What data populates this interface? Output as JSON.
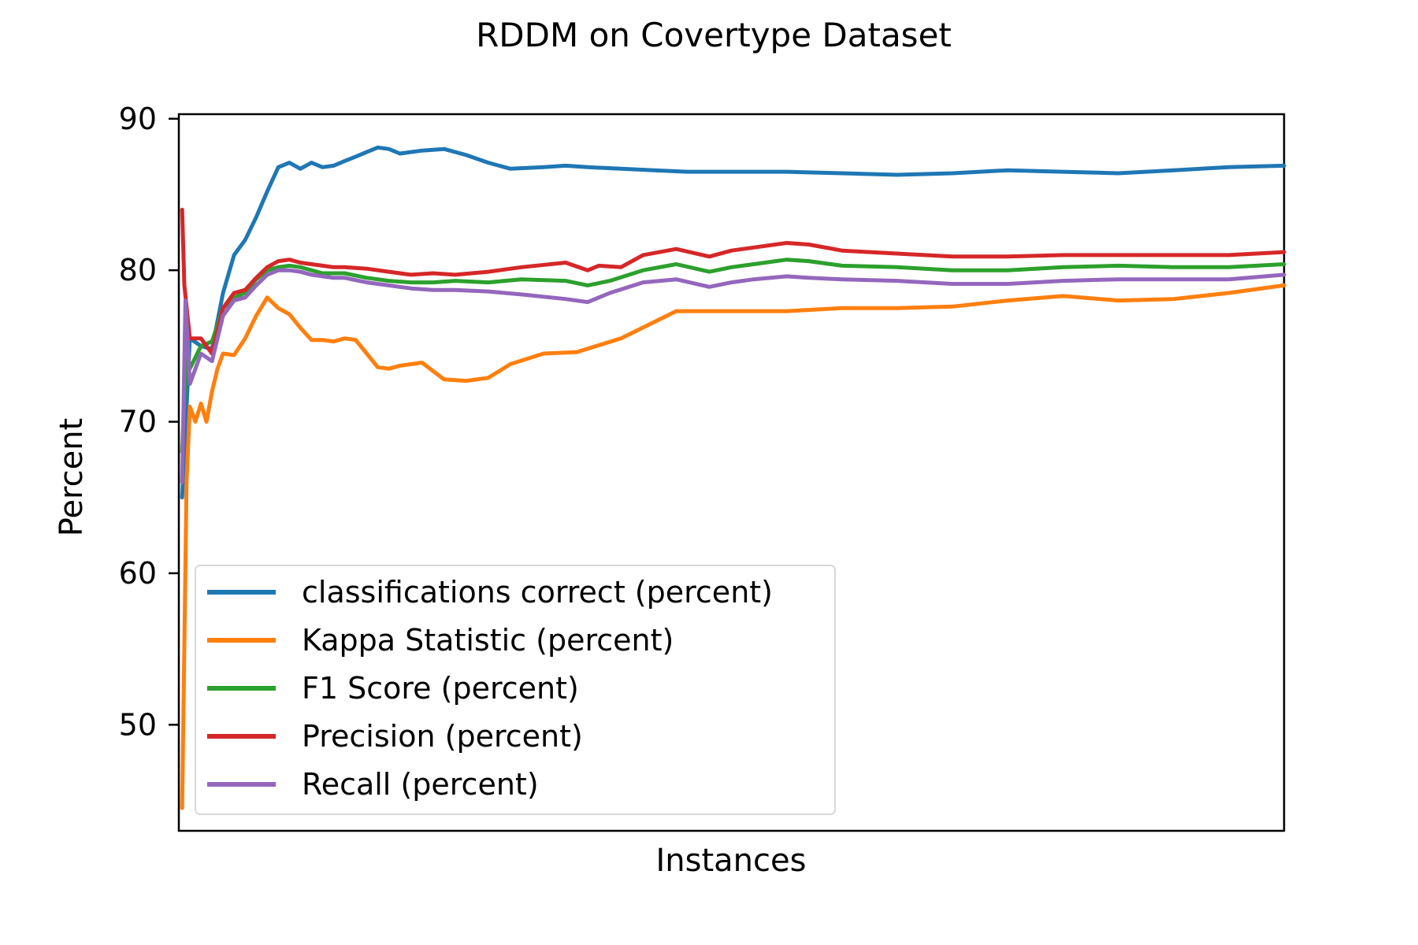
{
  "chart_data": {
    "type": "line",
    "title": "RDDM on Covertype Dataset",
    "xlabel": "Instances",
    "ylabel": "Percent",
    "xlim": [
      0,
      100
    ],
    "ylim": [
      43,
      90.3
    ],
    "yticks": [
      50,
      60,
      70,
      80,
      90
    ],
    "grid": false,
    "legend_position": "lower-left",
    "series": [
      {
        "name": "classifications correct (percent)",
        "color": "#1f77b4",
        "x": [
          0.3,
          1,
          2,
          3,
          4,
          5,
          6,
          7,
          8,
          9,
          10,
          11,
          12,
          13,
          14,
          15,
          16,
          17,
          18,
          19,
          20,
          22,
          24,
          26,
          28,
          30,
          33,
          35,
          37,
          40,
          43,
          46,
          50,
          55,
          60,
          65,
          70,
          75,
          80,
          85,
          90,
          95,
          100
        ],
        "y": [
          65,
          75.5,
          75,
          74.8,
          78.5,
          81,
          82,
          83.5,
          85.2,
          86.8,
          87.1,
          86.7,
          87.1,
          86.8,
          86.9,
          87.2,
          87.5,
          87.8,
          88.1,
          88,
          87.7,
          87.9,
          88,
          87.6,
          87.1,
          86.7,
          86.8,
          86.9,
          86.8,
          86.7,
          86.6,
          86.5,
          86.5,
          86.5,
          86.4,
          86.3,
          86.4,
          86.6,
          86.5,
          86.4,
          86.6,
          86.8,
          86.9
        ]
      },
      {
        "name": "Kappa Statistic (percent)",
        "color": "#ff7f0e",
        "x": [
          0.3,
          0.7,
          1,
          1.5,
          2,
          2.5,
          3,
          3.5,
          4,
          5,
          6,
          7,
          8,
          9,
          10,
          11,
          12,
          13,
          14,
          15,
          16,
          17,
          18,
          19,
          20,
          22,
          24,
          26,
          28,
          30,
          33,
          36,
          40,
          45,
          50,
          55,
          60,
          65,
          70,
          75,
          80,
          85,
          90,
          95,
          100
        ],
        "y": [
          44.5,
          66,
          71,
          70,
          71.2,
          70,
          72,
          73.5,
          74.5,
          74.4,
          75.5,
          77,
          78.2,
          77.5,
          77.1,
          76.2,
          75.4,
          75.4,
          75.3,
          75.5,
          75.4,
          74.5,
          73.6,
          73.5,
          73.7,
          73.9,
          72.8,
          72.7,
          72.9,
          73.8,
          74.5,
          74.6,
          75.5,
          77.3,
          77.3,
          77.3,
          77.5,
          77.5,
          77.6,
          78,
          78.3,
          78,
          78.1,
          78.5,
          79
        ]
      },
      {
        "name": "F1 Score (percent)",
        "color": "#2ca02c",
        "x": [
          0.3,
          0.7,
          1,
          2,
          3,
          4,
          5,
          6,
          7,
          8,
          9,
          10,
          11,
          12,
          13,
          14,
          15,
          17,
          19,
          21,
          23,
          25,
          28,
          31,
          35,
          37,
          39,
          42,
          45,
          48,
          50,
          52,
          55,
          57,
          60,
          65,
          70,
          75,
          80,
          85,
          90,
          95,
          100
        ],
        "y": [
          68,
          75,
          73.5,
          75,
          75.3,
          77.5,
          78.2,
          78.5,
          79.4,
          80,
          80.2,
          80.3,
          80.2,
          80,
          79.8,
          79.8,
          79.8,
          79.5,
          79.3,
          79.2,
          79.2,
          79.3,
          79.2,
          79.4,
          79.3,
          79,
          79.3,
          80,
          80.4,
          79.9,
          80.2,
          80.4,
          80.7,
          80.6,
          80.3,
          80.2,
          80,
          80,
          80.2,
          80.3,
          80.2,
          80.2,
          80.4
        ]
      },
      {
        "name": "Precision (percent)",
        "color": "#d62728",
        "x": [
          0.3,
          0.5,
          1,
          2,
          3,
          4,
          5,
          6,
          7,
          8,
          9,
          10,
          11,
          12,
          13,
          14,
          15,
          17,
          19,
          21,
          23,
          25,
          28,
          31,
          35,
          37,
          38,
          40,
          42,
          45,
          48,
          50,
          52,
          55,
          57,
          60,
          65,
          70,
          75,
          80,
          85,
          90,
          95,
          100
        ],
        "y": [
          84,
          79,
          75.5,
          75.5,
          74.5,
          77.5,
          78.5,
          78.7,
          79.5,
          80.2,
          80.6,
          80.7,
          80.5,
          80.4,
          80.3,
          80.2,
          80.2,
          80.1,
          79.9,
          79.7,
          79.8,
          79.7,
          79.9,
          80.2,
          80.5,
          80,
          80.3,
          80.2,
          81,
          81.4,
          80.9,
          81.3,
          81.5,
          81.8,
          81.7,
          81.3,
          81.1,
          80.9,
          80.9,
          81,
          81,
          81,
          81,
          81.2
        ]
      },
      {
        "name": "Recall (percent)",
        "color": "#9467bd",
        "x": [
          0.3,
          0.6,
          1,
          2,
          3,
          4,
          5,
          6,
          7,
          8,
          9,
          10,
          11,
          12,
          13,
          14,
          15,
          17,
          19,
          21,
          23,
          25,
          28,
          31,
          35,
          37,
          39,
          42,
          45,
          48,
          50,
          52,
          55,
          57,
          60,
          65,
          70,
          75,
          80,
          85,
          90,
          95,
          100
        ],
        "y": [
          66,
          78,
          72.5,
          74.5,
          74,
          77,
          78,
          78.2,
          79,
          79.7,
          80,
          80,
          79.9,
          79.7,
          79.6,
          79.5,
          79.5,
          79.2,
          79,
          78.8,
          78.7,
          78.7,
          78.6,
          78.4,
          78.1,
          77.9,
          78.5,
          79.2,
          79.4,
          78.9,
          79.2,
          79.4,
          79.6,
          79.5,
          79.4,
          79.3,
          79.1,
          79.1,
          79.3,
          79.4,
          79.4,
          79.4,
          79.7
        ]
      }
    ]
  }
}
